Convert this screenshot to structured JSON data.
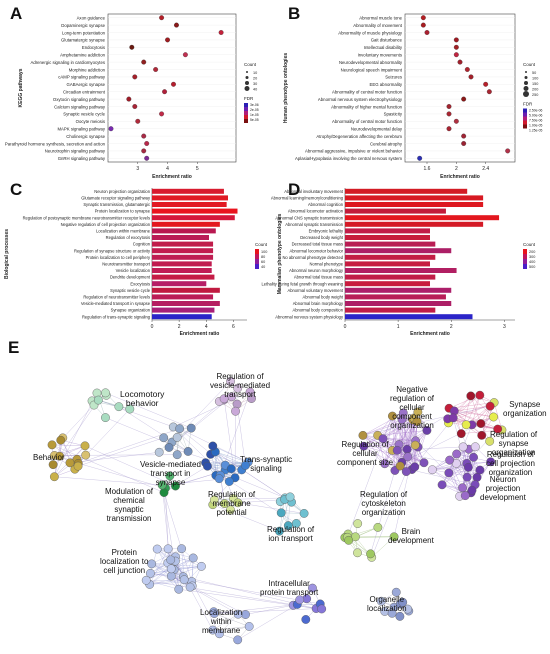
{
  "panels": {
    "A": "A",
    "B": "B",
    "C": "C",
    "D": "D",
    "E": "E"
  },
  "chart_data": [
    {
      "id": "A",
      "type": "scatter",
      "ylabel": "KEGG pathways",
      "xlabel": "Enrichment ratio",
      "xticks": [
        3,
        4,
        5
      ],
      "xlim": [
        2,
        6.3
      ],
      "legend_size_title": "Count",
      "legend_size_labels": [
        "10",
        "20",
        "30",
        "40"
      ],
      "legend_color_title": "FDR",
      "legend_color_labels": [
        "3e-06",
        "2e-05",
        "1e-05",
        "5e-05"
      ],
      "categories": [
        "Axon guidance",
        "Dopaminergic synapse",
        "Long-term potentiation",
        "Glutamatergic synapse",
        "Endocytosis",
        "Amphetamine addiction",
        "Adrenergic signaling in cardiomyocytes",
        "Morphine addiction",
        "cAMP signaling pathway",
        "GABAergic synapse",
        "Circadian entrainment",
        "Oxytocin signaling pathway",
        "Calcium signaling pathway",
        "Synaptic vesicle cycle",
        "Oocyte meiosis",
        "MAPK signaling pathway",
        "Cholinergic synapse",
        "Parathyroid hormone synthesis, secretion and action",
        "Neurotrophin signaling pathway",
        "GnRH signaling pathway"
      ],
      "values": [
        3.8,
        4.3,
        5.8,
        4.0,
        2.8,
        4.6,
        3.2,
        3.6,
        2.9,
        4.2,
        3.9,
        2.7,
        2.9,
        3.8,
        3.0,
        2.1,
        3.2,
        3.3,
        3.2,
        3.3
      ]
    },
    {
      "id": "B",
      "type": "scatter",
      "ylabel": "Human phenotype ontologies",
      "xlabel": "Enrichment ratio",
      "xticks": [
        1.6,
        2.0,
        2.4
      ],
      "xlim": [
        1.3,
        2.8
      ],
      "legend_size_title": "Count",
      "legend_size_labels": [
        "50",
        "100",
        "150",
        "200",
        "250"
      ],
      "legend_color_title": "FDR",
      "legend_color_labels": [
        "2.50e-06",
        "5.00e-06",
        "7.50e-06",
        "1.00e-05",
        "1.25e-05"
      ],
      "categories": [
        "Abnormal muscle tone",
        "Abnormality of movement",
        "Abnormality of muscle physiology",
        "Gait disturbance",
        "Intellectual disability",
        "Involuntary movements",
        "Neurodevelopmental abnormality",
        "Neurological speech impairment",
        "Seizures",
        "EEG abnormality",
        "Abnormality of central motor function",
        "Abnormal nervous system electrophysiology",
        "Abnormality of higher mental function",
        "Spasticity",
        "Abnormality of central motor function",
        "Neurodevelopmental delay",
        "Atrophy/Degeneration affecting the cerebrum",
        "Cerebral atrophy",
        "Abnormal aggressive, impulsive or violent behavior",
        "Aplasia/Hypoplasia involving the central nervous system"
      ],
      "values": [
        1.55,
        1.55,
        1.6,
        2.0,
        2.0,
        2.0,
        2.05,
        2.15,
        2.2,
        2.4,
        2.45,
        2.1,
        1.9,
        1.9,
        2.0,
        1.9,
        2.1,
        2.1,
        2.7,
        1.5
      ]
    },
    {
      "id": "C",
      "type": "bar",
      "ylabel": "Biological processes",
      "xlabel": "Enrichment ratio",
      "xticks": [
        0,
        2,
        4,
        6
      ],
      "xlim": [
        0,
        7
      ],
      "legend_title": "Count",
      "legend_labels": [
        "100",
        "80",
        "60",
        "40"
      ],
      "categories": [
        "Neuron projection organization",
        "Glutamate receptor signaling pathway",
        "Synaptic transmission, glutamatergic",
        "Protein localization to synapse",
        "Regulation of postsynaptic membrane neurotransmitter receptor levels",
        "Negative regulation of cell projection organization",
        "Localization within membrane",
        "Regulation of exocytosis",
        "Cognition",
        "Regulation of synapse structure or activity",
        "Protein localization to cell periphery",
        "Neurotransmitter transport",
        "Vesicle localization",
        "Dendrite development",
        "Exocytosis",
        "Synaptic vesicle cycle",
        "Regulation of neurotransmitter levels",
        "Vesicle-mediated transport in synapse",
        "Synapse organization",
        "Regulation of trans-synaptic signaling"
      ],
      "values": [
        5.3,
        5.6,
        5.5,
        6.3,
        6.1,
        5.0,
        4.7,
        4.2,
        4.5,
        4.5,
        4.5,
        4.4,
        4.4,
        4.6,
        4.0,
        5.0,
        4.5,
        5.0,
        4.6,
        4.4
      ]
    },
    {
      "id": "D",
      "type": "bar",
      "ylabel": "Mammalian phenotype ontologies",
      "xlabel": "Enrichment ratio",
      "xticks": [
        0,
        1,
        2,
        3
      ],
      "xlim": [
        0,
        3.2
      ],
      "legend_title": "Count",
      "legend_labels": [
        "200",
        "300",
        "400",
        "500"
      ],
      "categories": [
        "Abnormal involuntary movement",
        "Abnormal learning/memory/conditioning",
        "Abnormal cognition",
        "Abnormal locomotor activation",
        "Abnormal CNS synaptic transmission",
        "Abnormal synaptic transmission",
        "Embryonic lethality",
        "Decreased body weight",
        "Decreased total tissue mass",
        "Abnormal locomotor behavior",
        "No abnormal phenotype detected",
        "Normal phenotype",
        "Abnormal neuron morphology",
        "Abnormal total tissue mass",
        "Lethality during fetal growth through weaning",
        "Abnormal voluntary movement",
        "Abnormal body weight",
        "Abnormal brain morphology",
        "Abnormal body composition",
        "Abnormal nervous system physiology"
      ],
      "values": [
        2.3,
        2.6,
        2.6,
        1.9,
        2.9,
        2.6,
        1.6,
        1.6,
        1.7,
        2.0,
        1.7,
        1.6,
        2.1,
        1.7,
        1.6,
        2.0,
        1.9,
        2.0,
        1.7,
        2.4
      ]
    }
  ],
  "network": {
    "labels": [
      {
        "key": "locomotory",
        "text": "Locomotory\nbehavior"
      },
      {
        "key": "vesicle_reg",
        "text": "Regulation of\nvesicle-mediated\ntransport"
      },
      {
        "key": "vesicle_syn",
        "text": "Vesicle-mediated\ntransport in\nsynapse"
      },
      {
        "key": "trans_syn",
        "text": "Trans-synaptic\nsignaling"
      },
      {
        "key": "behavior",
        "text": "Behavior"
      },
      {
        "key": "modulation",
        "text": "Modulation of\nchemical\nsynaptic\ntransmission"
      },
      {
        "key": "membrane_pot",
        "text": "Regulation of\nmembrane\npotential"
      },
      {
        "key": "ion_transport",
        "text": "Regulation of\nion transport"
      },
      {
        "key": "protein_loc",
        "text": "Protein\nlocalization to\ncell junction"
      },
      {
        "key": "loc_membrane",
        "text": "Localization\nwithin\nmembrane"
      },
      {
        "key": "intracellular",
        "text": "Intracellular\nprotein transport"
      },
      {
        "key": "neg_reg",
        "text": "Negative\nregulation of\ncellular\ncomponent\norganization"
      },
      {
        "key": "synapse_org",
        "text": "Synapse\norganization"
      },
      {
        "key": "reg_synapse",
        "text": "Regulation of\nsynapse\norganization"
      },
      {
        "key": "reg_cellular",
        "text": "Regulation of\ncellular\ncomponent size"
      },
      {
        "key": "reg_projection",
        "text": "Regulation of\ncell projection\norganization"
      },
      {
        "key": "neuron_proj",
        "text": "Neuron\nprojection\ndevelopment"
      },
      {
        "key": "cytoskeleton",
        "text": "Regulation of\ncytoskeleton\norganization"
      },
      {
        "key": "brain_dev",
        "text": "Brain\ndevelopment"
      },
      {
        "key": "organelle",
        "text": "Organelle\nlocalization"
      }
    ]
  }
}
